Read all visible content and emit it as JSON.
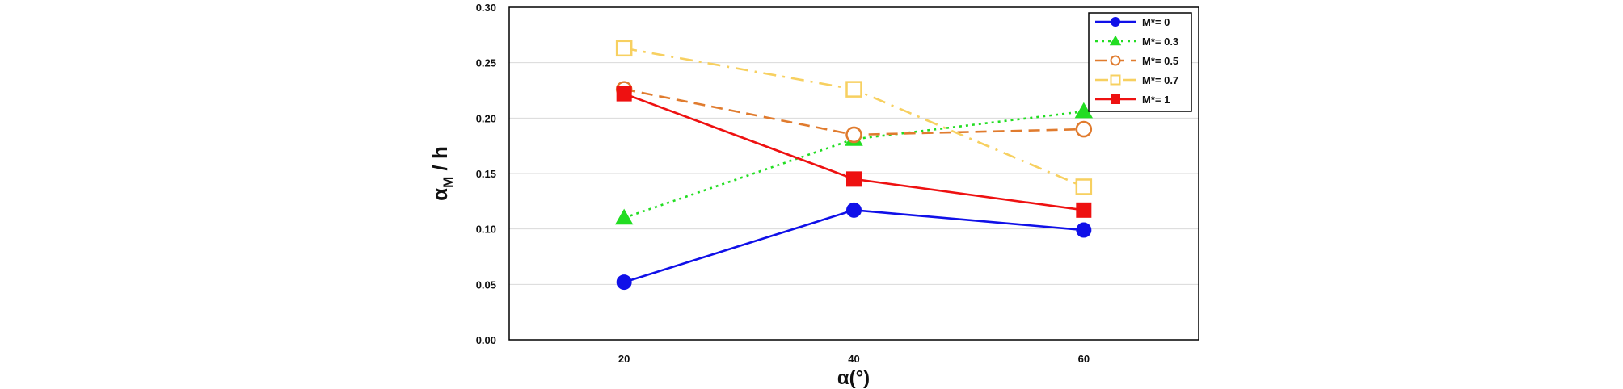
{
  "chart_data": {
    "type": "line",
    "x": [
      20,
      40,
      60
    ],
    "x_ticks": [
      "20",
      "40",
      "60"
    ],
    "xlim": [
      10,
      70
    ],
    "ylim": [
      0,
      0.3
    ],
    "y_ticks": [
      "0.00",
      "0.05",
      "0.10",
      "0.15",
      "0.20",
      "0.25",
      "0.30"
    ],
    "xlabel": "α(°)",
    "ylabel_main": "α",
    "ylabel_sub": "M",
    "ylabel_tail": " / h",
    "grid": "horizontal",
    "legend_position": "top-right",
    "series": [
      {
        "name": "M*= 0",
        "values": [
          0.052,
          0.117,
          0.099
        ],
        "color": "#1010e8",
        "marker": "circle",
        "filled": true,
        "dash": "solid"
      },
      {
        "name": "M*= 0.3",
        "values": [
          0.11,
          0.181,
          0.206
        ],
        "color": "#22dd22",
        "marker": "triangle",
        "filled": true,
        "dash": "dotted"
      },
      {
        "name": "M*= 0.5",
        "values": [
          0.226,
          0.185,
          0.19
        ],
        "color": "#e07b2e",
        "marker": "circle",
        "filled": false,
        "dash": "dashed"
      },
      {
        "name": "M*= 0.7",
        "values": [
          0.263,
          0.226,
          0.138
        ],
        "color": "#f7d060",
        "marker": "square",
        "filled": false,
        "dash": "dashdot"
      },
      {
        "name": "M*= 1",
        "values": [
          0.222,
          0.145,
          0.117
        ],
        "color": "#ee1111",
        "marker": "square",
        "filled": true,
        "dash": "solid"
      }
    ]
  }
}
